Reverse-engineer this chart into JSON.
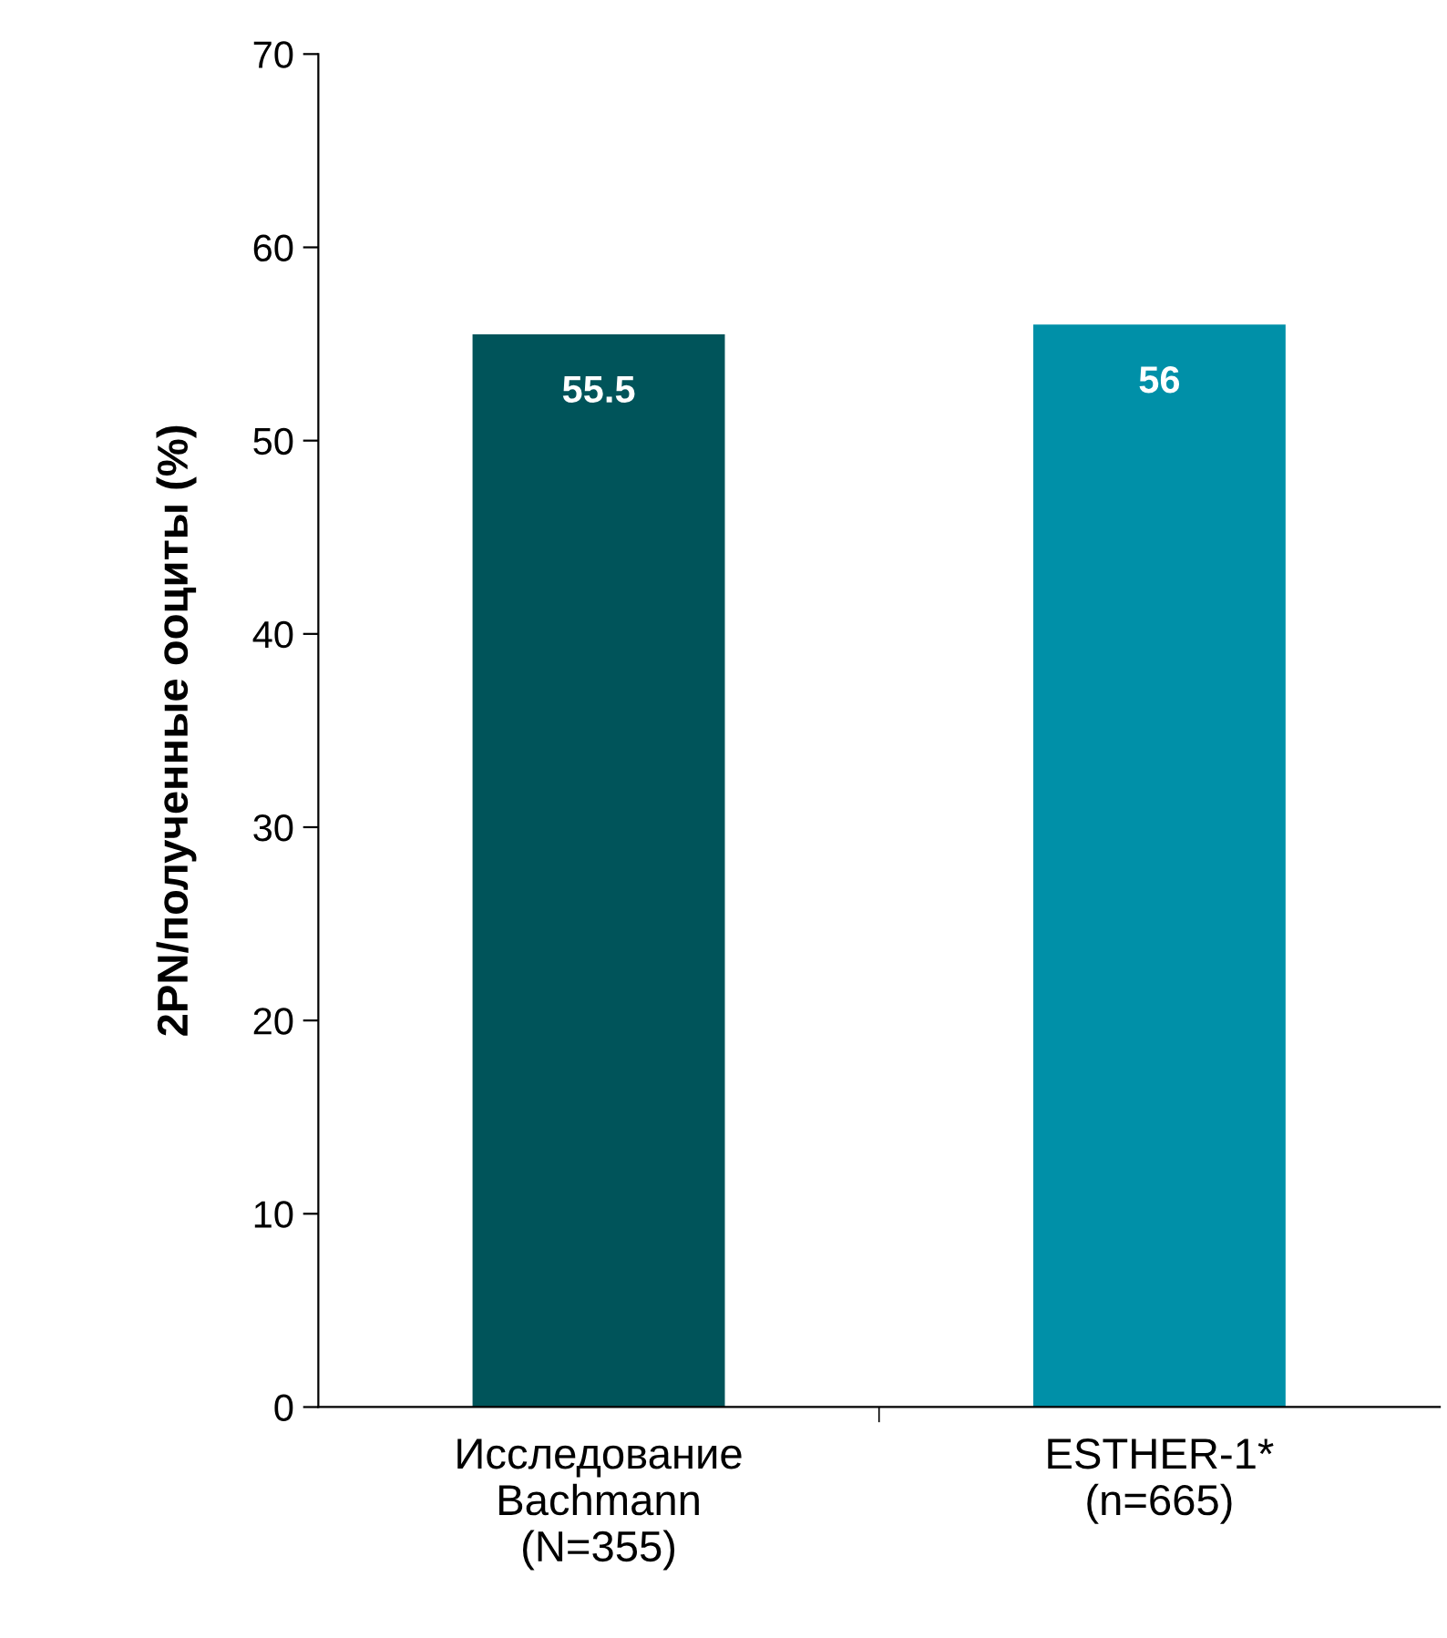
{
  "chart_data": {
    "type": "bar",
    "ylabel": "2PN/полученные ооциты (%)",
    "categories": [
      "Исследование\nBachmann\n(N=355)",
      "ESTHER-1*\n(n=665)"
    ],
    "values": [
      55.5,
      56
    ],
    "colors": [
      "#00545a",
      "#0090a8"
    ],
    "ylim": [
      0,
      70
    ],
    "yticks": [
      0,
      10,
      20,
      30,
      40,
      50,
      60,
      70
    ],
    "data_labels": true,
    "grid": false,
    "legend": false
  }
}
